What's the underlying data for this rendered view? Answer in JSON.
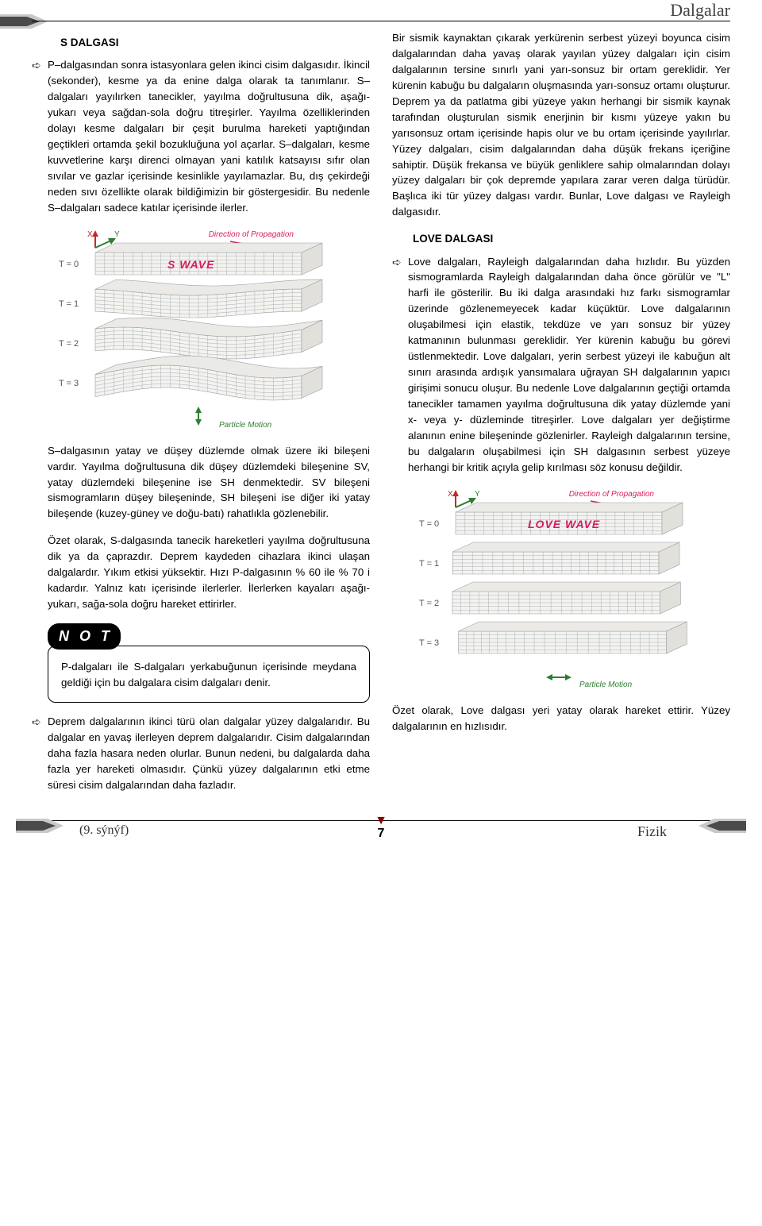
{
  "header": {
    "chapter_title": "Dalgalar"
  },
  "left": {
    "h1": "S DALGASI",
    "p1": "P–dalgasından sonra istasyonlara gelen ikinci cisim dalgasıdır. İkincil (sekonder), kesme ya da enine dalga olarak ta tanımlanır. S–dalgaları yayılırken tanecikler, yayılma doğrultusuna dik, aşağı-yukarı veya sağdan-sola doğru titreşirler. Yayılma özelliklerinden dolayı kesme dalgaları bir çeşit burulma hareketi yaptığından geçtikleri ortamda şekil bozukluğuna yol açarlar. S–dalgaları, kesme kuvvetlerine karşı direnci olmayan yani katılık katsayısı sıfır olan sıvılar ve gazlar içerisinde kesinlikle yayılamazlar. Bu, dış çekirdeği neden sıvı özellikte olarak bildiğimizin bir göstergesidir. Bu nedenle S–dalgaları sadece katılar içerisinde ilerler.",
    "p2": "S–dalgasının yatay ve düşey düzlemde olmak üzere iki bileşeni vardır. Yayılma doğrultusuna dik düşey düzlemdeki bileşenine SV, yatay düzlemdeki bileşenine ise SH denmektedir. SV bileşeni sismogramların düşey bileşeninde, SH bileşeni ise diğer iki yatay bileşende (kuzey-güney ve doğu-batı) rahatlıkla gözlenebilir.",
    "p3": "Özet olarak, S-dalgasında tanecik hareketleri yayılma doğrultusuna dik ya da çaprazdır. Deprem kaydeden cihazlara ikinci ulaşan dalgalardır. Yıkım etkisi yüksektir. Hızı P-dalgasının % 60 ile % 70 i kadardır. Yalnız katı içerisinde ilerlerler. İlerlerken kayaları aşağı-yukarı, sağa-sola doğru hareket ettirirler.",
    "not_label": "N O T",
    "not_text": "P-dalgaları ile S-dalgaları yerkabuğunun içerisinde meydana geldiği için bu dalgalara cisim dalgaları denir.",
    "p4": "Deprem dalgalarının ikinci türü olan dalgalar yüzey dalgalarıdır. Bu dalgalar en yavaş ilerleyen deprem dalgalarıdır. Cisim dalgalarından daha fazla hasara neden olurlar. Bunun nedeni, bu dalgalarda daha fazla yer hareketi olmasıdır. Çünkü yüzey dalgalarının etki etme süresi cisim dalgalarından daha fazladır."
  },
  "right": {
    "p1": "Bir sismik kaynaktan çıkarak yerkürenin serbest yüzeyi boyunca cisim dalgalarından daha yavaş olarak yayılan yüzey dalgaları için cisim dalgalarının tersine sınırlı yani yarı-sonsuz bir ortam gereklidir. Yer kürenin kabuğu bu dalgaların oluşmasında yarı-sonsuz ortamı oluşturur. Deprem ya da patlatma gibi yüzeye yakın herhangi bir sismik kaynak tarafından oluşturulan sismik enerjinin bir kısmı yüzeye yakın bu yarısonsuz ortam içerisinde hapis olur ve bu ortam içerisinde yayılırlar. Yüzey dalgaları, cisim dalgalarından daha düşük frekans içeriğine sahiptir. Düşük frekansa ve büyük genliklere sahip olmalarından dolayı yüzey dalgaları bir çok depremde yapılara zarar veren dalga türüdür. Başlıca iki tür yüzey dalgası vardır. Bunlar, Love dalgası ve Rayleigh dalgasıdır.",
    "h2": "LOVE DALGASI",
    "p2": "Love dalgaları, Rayleigh dalgalarından daha hızlıdır. Bu yüzden sismogramlarda Rayleigh dalgalarından daha önce görülür ve \"L\" harfi ile gösterilir. Bu iki dalga arasındaki hız farkı sismogramlar üzerinde gözlenemeyecek kadar küçüktür. Love dalgalarının oluşabilmesi için elastik, tekdüze ve yarı sonsuz bir yüzey katmanının bulunması gereklidir. Yer kürenin kabuğu bu görevi üstlenmektedir. Love dalgaları, yerin serbest yüzeyi ile kabuğun alt sınırı arasında ardışık yansımalara uğrayan SH dalgalarının yapıcı girişimi sonucu oluşur. Bu nedenle Love dalgalarının geçtiği ortamda tanecikler tamamen yayılma doğrultusuna dik yatay düzlemde yani x- veya y- düzleminde titreşirler. Love dalgaları yer değiştirme alanının enine bileşeninde gözlenirler. Rayleigh dalgalarının tersine, bu dalgaların oluşabilmesi için SH dalgasının serbest yüzeye herhangi bir kritik açıyla gelip kırılması söz konusu değildir.",
    "p3": "Özet olarak, Love dalgası yeri yatay olarak hareket ettirir. Yüzey dalgalarının en hızlısıdır."
  },
  "footer": {
    "grade": "(9. sýnýf)",
    "subject": "Fizik",
    "pagenum": "7"
  },
  "diagrams": {
    "s_wave": {
      "wave_label": "S WAVE",
      "prop_label": "Direction of Propagation",
      "particle_label": "Particle Motion",
      "axis_x": "X",
      "axis_y": "Y",
      "times": [
        "T = 0",
        "T = 1",
        "T = 2",
        "T = 3"
      ],
      "grid_color": "#9aa0a6",
      "face_color": "#f3f3f0",
      "accent_color": "#d81b60",
      "accent_green": "#2e7d32",
      "text_color": "#555555"
    },
    "love_wave": {
      "wave_label": "LOVE WAVE",
      "prop_label": "Direction of Propagation",
      "particle_label": "Particle Motion",
      "axis_x": "X",
      "axis_y": "Y",
      "times": [
        "T = 0",
        "T = 1",
        "T = 2",
        "T = 3"
      ],
      "grid_color": "#9aa0a6",
      "face_color": "#f3f3f0",
      "accent_color": "#d81b60",
      "accent_green": "#2e7d32",
      "text_color": "#555555"
    }
  },
  "colors": {
    "footer_tab_dark": "#4a4a4a",
    "footer_tab_light": "#c8c8c8",
    "triangle": "#8b0000"
  }
}
